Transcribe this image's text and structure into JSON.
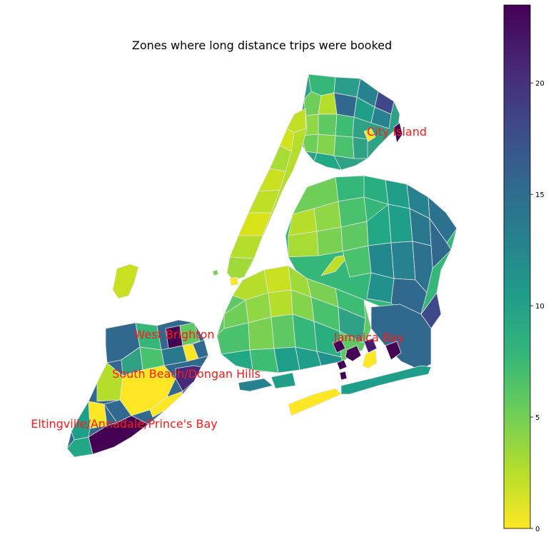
{
  "title": "Zones where long distance trips were booked",
  "annotations": [
    {
      "id": "city-island",
      "text": "City Island"
    },
    {
      "id": "west-brighton",
      "text": "West Brighton"
    },
    {
      "id": "jamaica-bay",
      "text": "Jamaica Bay"
    },
    {
      "id": "south-beach",
      "text": "South Beach/Dongan Hills"
    },
    {
      "id": "eltingville",
      "text": "Eltingville/Annadale/Prince's Bay"
    }
  ],
  "colorbar": {
    "min": 0,
    "max": 23.5,
    "ticks": [
      "0",
      "5",
      "10",
      "15",
      "20"
    ],
    "colormap": "viridis_r",
    "colors": [
      "#fde725",
      "#b5de2b",
      "#6ece58",
      "#35b779",
      "#1f9e89",
      "#26828e",
      "#31688e",
      "#3e4989",
      "#482878",
      "#440154"
    ]
  }
}
